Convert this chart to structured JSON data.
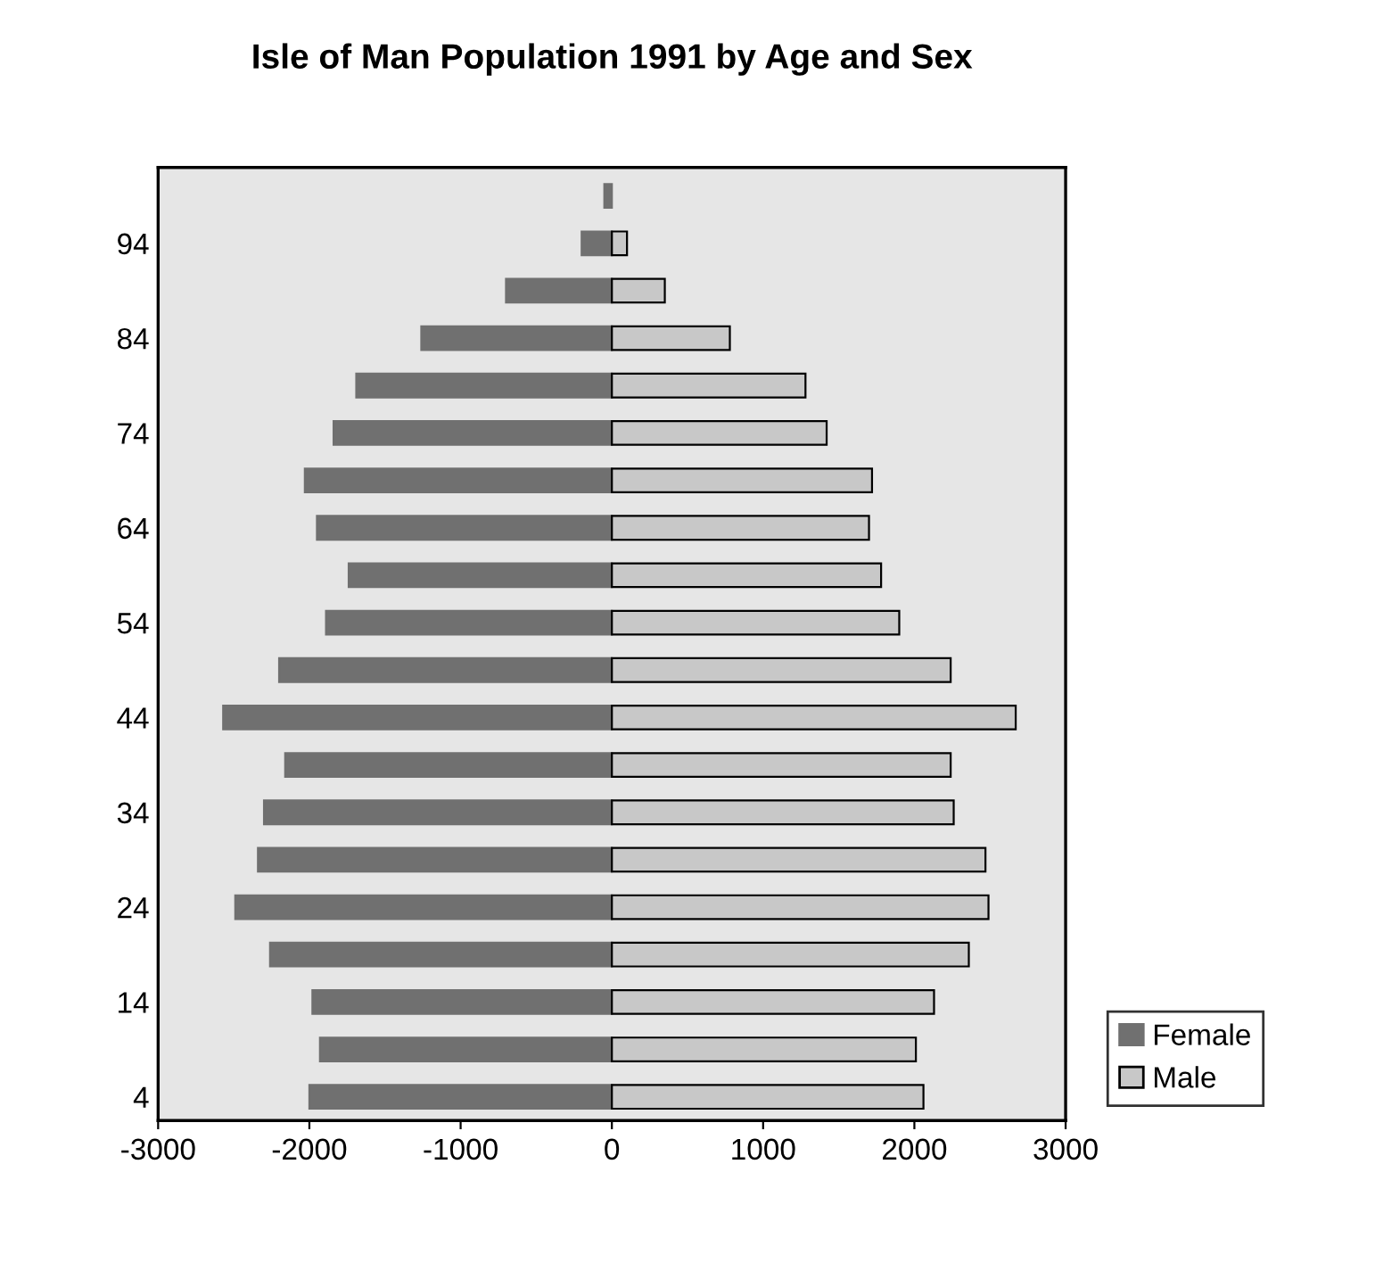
{
  "chart_data": {
    "type": "bar",
    "orientation": "horizontal",
    "title": "Isle of Man Population 1991 by Age and Sex",
    "categories": [
      null,
      "94",
      null,
      "84",
      null,
      "74",
      null,
      "64",
      null,
      "54",
      null,
      "44",
      null,
      "34",
      null,
      "24",
      null,
      "14",
      null,
      "4"
    ],
    "series": [
      {
        "name": "Female",
        "color": "#707070",
        "values": [
          -50,
          -200,
          -700,
          -1260,
          -1690,
          -1840,
          -2030,
          -1950,
          -1740,
          -1890,
          -2200,
          -2570,
          -2160,
          -2300,
          -2340,
          -2490,
          -2260,
          -1980,
          -1930,
          -2000
        ]
      },
      {
        "name": "Male",
        "color": "#c8c8c8",
        "values": [
          null,
          100,
          350,
          780,
          1280,
          1420,
          1720,
          1700,
          1780,
          1900,
          2240,
          2670,
          2240,
          2260,
          2470,
          2490,
          2360,
          2130,
          2010,
          2060
        ]
      }
    ],
    "xlim": [
      -3000,
      3000
    ],
    "xticks": [
      -3000,
      -2000,
      -1000,
      0,
      1000,
      2000,
      3000
    ],
    "stacked": true,
    "grid": false,
    "legend": "bottom right"
  }
}
